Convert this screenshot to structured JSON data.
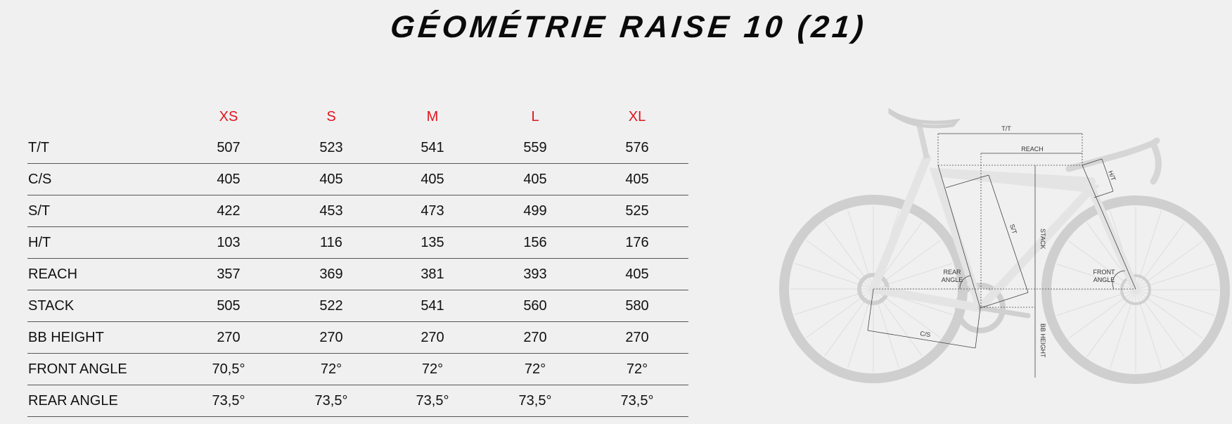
{
  "title": "GÉOMÉTRIE RAISE 10 (21)",
  "table": {
    "sizes": [
      "XS",
      "S",
      "M",
      "L",
      "XL"
    ],
    "rows": [
      {
        "label": "T/T",
        "values": [
          "507",
          "523",
          "541",
          "559",
          "576"
        ]
      },
      {
        "label": "C/S",
        "values": [
          "405",
          "405",
          "405",
          "405",
          "405"
        ]
      },
      {
        "label": "S/T",
        "values": [
          "422",
          "453",
          "473",
          "499",
          "525"
        ]
      },
      {
        "label": "H/T",
        "values": [
          "103",
          "116",
          "135",
          "156",
          "176"
        ]
      },
      {
        "label": "REACH",
        "values": [
          "357",
          "369",
          "381",
          "393",
          "405"
        ]
      },
      {
        "label": "STACK",
        "values": [
          "505",
          "522",
          "541",
          "560",
          "580"
        ]
      },
      {
        "label": "BB HEIGHT",
        "values": [
          "270",
          "270",
          "270",
          "270",
          "270"
        ]
      },
      {
        "label": "FRONT ANGLE",
        "values": [
          "70,5°",
          "72°",
          "72°",
          "72°",
          "72°"
        ]
      },
      {
        "label": "REAR ANGLE",
        "values": [
          "73,5°",
          "73,5°",
          "73,5°",
          "73,5°",
          "73,5°"
        ]
      }
    ]
  },
  "diagram": {
    "labels": {
      "tt": "T/T",
      "reach": "REACH",
      "ht": "H/T",
      "st": "S/T",
      "stack": "STACK",
      "rear1": "REAR",
      "rear2": "ANGLE",
      "front1": "FRONT",
      "front2": "ANGLE",
      "cs": "C/S",
      "bb": "BB HEIGHT"
    }
  },
  "colors": {
    "size_header": "#e0141e",
    "background": "#f0f0f0"
  }
}
